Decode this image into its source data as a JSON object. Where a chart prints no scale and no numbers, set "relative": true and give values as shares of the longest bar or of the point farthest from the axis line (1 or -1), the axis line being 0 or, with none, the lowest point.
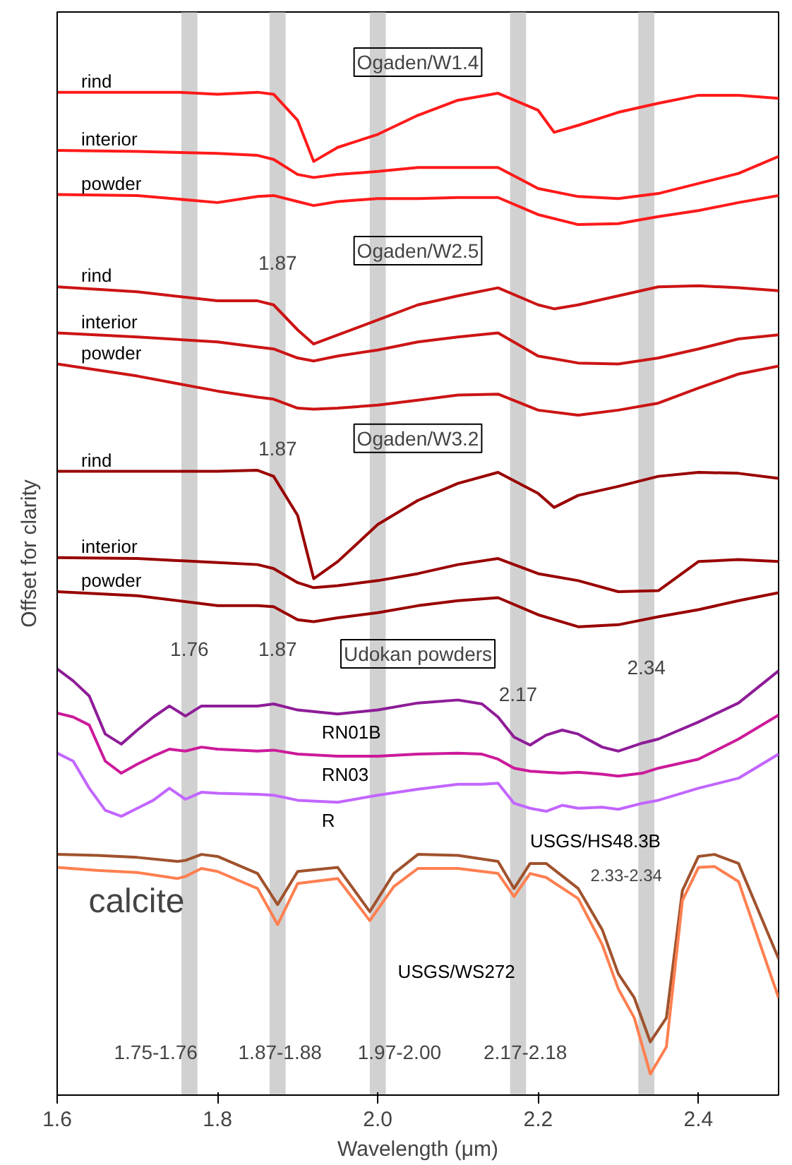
{
  "chart_data": {
    "type": "line",
    "relative": true,
    "xlabel": "Wavelength (μm)",
    "ylabel": "Offset for clarity",
    "xlim": [
      1.6,
      2.5
    ],
    "xticks": [
      1.6,
      1.8,
      {
        "value": 2.0,
        "label": "2.0"
      },
      2.2,
      2.4
    ],
    "grid": false,
    "bands": [
      {
        "axis": "x",
        "from": 1.755,
        "to": 1.775,
        "color": "#b3b3b3"
      },
      {
        "axis": "x",
        "from": 1.865,
        "to": 1.885,
        "color": "#b3b3b3"
      },
      {
        "axis": "x",
        "from": 1.99,
        "to": 2.01,
        "color": "#b3b3b3"
      },
      {
        "axis": "x",
        "from": 2.165,
        "to": 2.185,
        "color": "#b3b3b3"
      },
      {
        "axis": "x",
        "from": 2.325,
        "to": 2.345,
        "color": "#b3b3b3"
      }
    ],
    "series": [
      {
        "name": "rind",
        "color": "#ff1a1a",
        "x": [
          1.6,
          1.65,
          1.7,
          1.75,
          1.8,
          1.85,
          1.87,
          1.9,
          1.92,
          1.95,
          2.0,
          2.05,
          2.1,
          2.15,
          2.2,
          2.22,
          2.25,
          2.3,
          2.35,
          2.4,
          2.45,
          2.5
        ],
        "values": [
          1.0,
          1.0,
          1.0,
          1.0,
          0.998,
          1.0,
          0.998,
          0.972,
          0.931,
          0.945,
          0.958,
          0.977,
          0.992,
          0.999,
          0.982,
          0.96,
          0.967,
          0.98,
          0.989,
          0.997,
          0.997,
          0.994
        ]
      },
      {
        "name": "interior",
        "color": "#ff1a1a",
        "x": [
          1.6,
          1.7,
          1.8,
          1.85,
          1.87,
          1.9,
          1.92,
          1.95,
          2.0,
          2.05,
          2.1,
          2.15,
          2.2,
          2.25,
          2.3,
          2.35,
          2.4,
          2.45,
          2.5
        ],
        "values": [
          0.942,
          0.941,
          0.939,
          0.937,
          0.933,
          0.918,
          0.915,
          0.918,
          0.921,
          0.925,
          0.925,
          0.925,
          0.904,
          0.896,
          0.894,
          0.899,
          0.909,
          0.919,
          0.936
        ]
      },
      {
        "name": "powder",
        "color": "#ff1a1a",
        "x": [
          1.6,
          1.7,
          1.8,
          1.85,
          1.87,
          1.9,
          1.92,
          1.95,
          2.0,
          2.05,
          2.1,
          2.15,
          2.2,
          2.25,
          2.3,
          2.35,
          2.4,
          2.45,
          2.5
        ],
        "values": [
          0.898,
          0.897,
          0.89,
          0.896,
          0.897,
          0.891,
          0.887,
          0.891,
          0.894,
          0.894,
          0.895,
          0.895,
          0.878,
          0.868,
          0.869,
          0.876,
          0.882,
          0.89,
          0.897
        ]
      },
      {
        "name": "rind",
        "color": "#cc1414",
        "x": [
          1.6,
          1.7,
          1.8,
          1.85,
          1.87,
          1.9,
          1.92,
          1.95,
          2.0,
          2.05,
          2.1,
          2.15,
          2.2,
          2.22,
          2.25,
          2.3,
          2.35,
          2.4,
          2.45,
          2.5
        ],
        "values": [
          0.806,
          0.801,
          0.792,
          0.792,
          0.788,
          0.763,
          0.749,
          0.758,
          0.773,
          0.788,
          0.797,
          0.805,
          0.788,
          0.784,
          0.788,
          0.797,
          0.806,
          0.807,
          0.805,
          0.802
        ]
      },
      {
        "name": "interior",
        "color": "#cc1414",
        "x": [
          1.6,
          1.7,
          1.8,
          1.85,
          1.87,
          1.9,
          1.92,
          1.95,
          2.0,
          2.05,
          2.1,
          2.15,
          2.2,
          2.25,
          2.3,
          2.35,
          2.4,
          2.45,
          2.5
        ],
        "values": [
          0.76,
          0.756,
          0.751,
          0.746,
          0.744,
          0.735,
          0.732,
          0.737,
          0.743,
          0.751,
          0.756,
          0.76,
          0.737,
          0.73,
          0.729,
          0.735,
          0.744,
          0.754,
          0.758
        ]
      },
      {
        "name": "powder",
        "color": "#cc1414",
        "x": [
          1.6,
          1.7,
          1.8,
          1.85,
          1.87,
          1.9,
          1.92,
          1.95,
          2.0,
          2.05,
          2.1,
          2.15,
          2.2,
          2.25,
          2.3,
          2.35,
          2.4,
          2.45,
          2.5
        ],
        "values": [
          0.729,
          0.717,
          0.702,
          0.696,
          0.694,
          0.685,
          0.684,
          0.685,
          0.688,
          0.693,
          0.698,
          0.699,
          0.683,
          0.678,
          0.683,
          0.69,
          0.705,
          0.719,
          0.727
        ]
      },
      {
        "name": "rind",
        "color": "#990000",
        "x": [
          1.6,
          1.7,
          1.8,
          1.85,
          1.87,
          1.9,
          1.92,
          1.95,
          2.0,
          2.05,
          2.1,
          2.15,
          2.2,
          2.22,
          2.25,
          2.3,
          2.35,
          2.4,
          2.45,
          2.5
        ],
        "values": [
          0.622,
          0.622,
          0.622,
          0.623,
          0.617,
          0.578,
          0.515,
          0.532,
          0.569,
          0.593,
          0.61,
          0.621,
          0.6,
          0.586,
          0.598,
          0.607,
          0.617,
          0.621,
          0.62,
          0.615
        ]
      },
      {
        "name": "interior",
        "color": "#990000",
        "x": [
          1.6,
          1.7,
          1.8,
          1.85,
          1.87,
          1.9,
          1.92,
          1.95,
          2.0,
          2.05,
          2.1,
          2.15,
          2.2,
          2.25,
          2.3,
          2.35,
          2.4,
          2.45,
          2.5
        ],
        "values": [
          0.536,
          0.535,
          0.531,
          0.529,
          0.525,
          0.511,
          0.506,
          0.508,
          0.513,
          0.52,
          0.529,
          0.535,
          0.52,
          0.513,
          0.502,
          0.503,
          0.532,
          0.534,
          0.532
        ]
      },
      {
        "name": "powder",
        "color": "#990000",
        "x": [
          1.6,
          1.7,
          1.8,
          1.85,
          1.87,
          1.9,
          1.92,
          1.95,
          2.0,
          2.05,
          2.1,
          2.15,
          2.2,
          2.25,
          2.3,
          2.35,
          2.4,
          2.45,
          2.5
        ],
        "values": [
          0.502,
          0.498,
          0.488,
          0.488,
          0.487,
          0.474,
          0.472,
          0.476,
          0.481,
          0.488,
          0.493,
          0.496,
          0.479,
          0.467,
          0.469,
          0.477,
          0.484,
          0.493,
          0.501
        ]
      },
      {
        "name": "RN01B",
        "color": "#8e1c98",
        "x": [
          1.6,
          1.62,
          1.64,
          1.66,
          1.68,
          1.7,
          1.72,
          1.74,
          1.76,
          1.78,
          1.8,
          1.85,
          1.87,
          1.9,
          1.95,
          2.0,
          2.05,
          2.1,
          2.13,
          2.15,
          2.17,
          2.19,
          2.21,
          2.23,
          2.25,
          2.28,
          2.3,
          2.33,
          2.35,
          2.4,
          2.45,
          2.5
        ],
        "values": [
          0.425,
          0.413,
          0.398,
          0.36,
          0.35,
          0.364,
          0.377,
          0.388,
          0.378,
          0.388,
          0.388,
          0.388,
          0.39,
          0.384,
          0.38,
          0.384,
          0.391,
          0.394,
          0.39,
          0.377,
          0.357,
          0.349,
          0.359,
          0.364,
          0.36,
          0.347,
          0.343,
          0.351,
          0.355,
          0.372,
          0.391,
          0.423
        ]
      },
      {
        "name": "RN03",
        "color": "#cc1a9a",
        "x": [
          1.6,
          1.62,
          1.64,
          1.66,
          1.68,
          1.7,
          1.72,
          1.74,
          1.76,
          1.78,
          1.8,
          1.85,
          1.87,
          1.9,
          1.95,
          2.0,
          2.05,
          2.1,
          2.13,
          2.15,
          2.17,
          2.19,
          2.21,
          2.23,
          2.25,
          2.28,
          2.3,
          2.33,
          2.35,
          2.4,
          2.45,
          2.5
        ],
        "values": [
          0.381,
          0.377,
          0.369,
          0.333,
          0.321,
          0.33,
          0.338,
          0.345,
          0.343,
          0.347,
          0.345,
          0.343,
          0.344,
          0.34,
          0.338,
          0.338,
          0.34,
          0.341,
          0.34,
          0.335,
          0.326,
          0.323,
          0.322,
          0.321,
          0.322,
          0.32,
          0.318,
          0.321,
          0.326,
          0.335,
          0.355,
          0.379
        ]
      },
      {
        "name": "R",
        "color": "#c266ff",
        "x": [
          1.6,
          1.62,
          1.64,
          1.66,
          1.68,
          1.7,
          1.72,
          1.74,
          1.76,
          1.78,
          1.8,
          1.85,
          1.87,
          1.9,
          1.95,
          2.0,
          2.05,
          2.1,
          2.13,
          2.15,
          2.17,
          2.19,
          2.21,
          2.23,
          2.25,
          2.28,
          2.3,
          2.33,
          2.35,
          2.4,
          2.45,
          2.5
        ],
        "values": [
          0.341,
          0.333,
          0.306,
          0.284,
          0.278,
          0.286,
          0.294,
          0.306,
          0.295,
          0.302,
          0.301,
          0.3,
          0.299,
          0.294,
          0.292,
          0.299,
          0.305,
          0.31,
          0.31,
          0.311,
          0.291,
          0.286,
          0.283,
          0.289,
          0.286,
          0.287,
          0.285,
          0.291,
          0.294,
          0.306,
          0.316,
          0.34
        ]
      },
      {
        "name": "USGS/HS48.3B",
        "color": "#a0522d",
        "x": [
          1.6,
          1.65,
          1.7,
          1.75,
          1.76,
          1.78,
          1.8,
          1.85,
          1.875,
          1.9,
          1.95,
          1.99,
          2.02,
          2.05,
          2.1,
          2.15,
          2.17,
          2.19,
          2.21,
          2.25,
          2.28,
          2.3,
          2.32,
          2.34,
          2.36,
          2.38,
          2.4,
          2.42,
          2.45,
          2.5
        ],
        "values": [
          0.24,
          0.239,
          0.237,
          0.233,
          0.234,
          0.24,
          0.238,
          0.221,
          0.19,
          0.223,
          0.227,
          0.183,
          0.221,
          0.24,
          0.239,
          0.233,
          0.206,
          0.231,
          0.231,
          0.206,
          0.165,
          0.121,
          0.097,
          0.053,
          0.077,
          0.204,
          0.238,
          0.24,
          0.231,
          0.136
        ]
      },
      {
        "name": "USGS/WS272",
        "color": "#ff7f50",
        "x": [
          1.6,
          1.65,
          1.7,
          1.75,
          1.76,
          1.78,
          1.8,
          1.85,
          1.875,
          1.9,
          1.95,
          1.99,
          2.02,
          2.05,
          2.1,
          2.15,
          2.17,
          2.19,
          2.21,
          2.25,
          2.28,
          2.3,
          2.32,
          2.34,
          2.36,
          2.38,
          2.4,
          2.42,
          2.45,
          2.5
        ],
        "values": [
          0.227,
          0.224,
          0.222,
          0.216,
          0.218,
          0.226,
          0.223,
          0.206,
          0.17,
          0.211,
          0.216,
          0.174,
          0.208,
          0.226,
          0.226,
          0.221,
          0.198,
          0.221,
          0.217,
          0.196,
          0.15,
          0.106,
          0.077,
          0.021,
          0.048,
          0.194,
          0.227,
          0.228,
          0.213,
          0.097
        ]
      }
    ],
    "annotations": [
      "Ogaden/W1.4",
      "Ogaden/W2.5",
      "Ogaden/W3.2",
      "Udokan powders",
      "1.87",
      "1.87",
      "1.76",
      "1.87",
      "2.17",
      "2.34",
      "calcite",
      "2.33-2.34",
      "1.75-1.76",
      "1.87-1.88",
      "1.97-2.00",
      "2.17-2.18"
    ]
  }
}
